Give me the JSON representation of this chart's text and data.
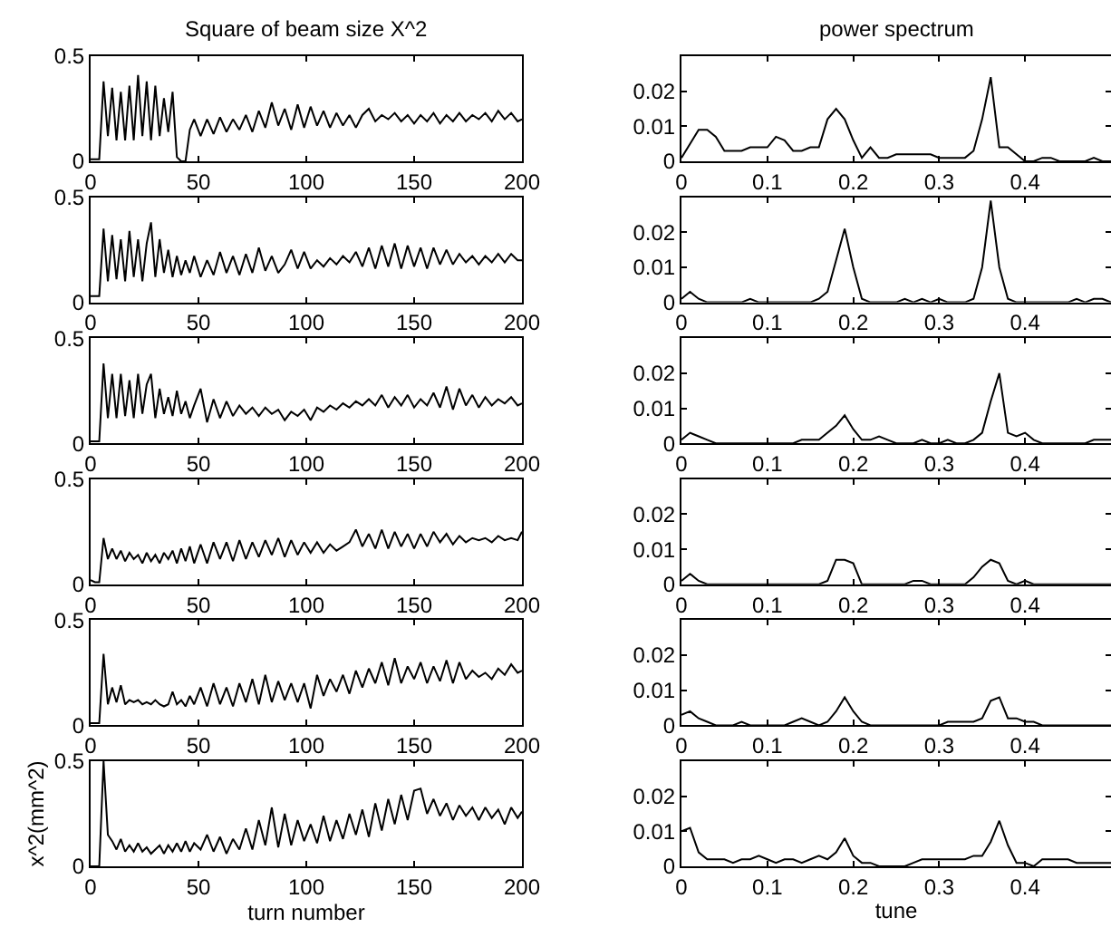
{
  "chart_data": [
    {
      "type": "line",
      "title": "Square of beam size X^2",
      "color": "#000000",
      "xlim": [
        0,
        200
      ],
      "ylim": [
        0,
        0.5
      ],
      "xticks": [
        0,
        50,
        100,
        150,
        200
      ],
      "yticks": [
        0,
        0.5
      ],
      "x": [
        0,
        2,
        4,
        6,
        8,
        10,
        12,
        14,
        16,
        18,
        20,
        22,
        24,
        26,
        28,
        30,
        32,
        34,
        36,
        38,
        40,
        42,
        44,
        46,
        48,
        51,
        54,
        57,
        60,
        63,
        66,
        69,
        72,
        75,
        78,
        81,
        84,
        87,
        90,
        93,
        96,
        99,
        102,
        105,
        108,
        111,
        114,
        117,
        120,
        123,
        126,
        129,
        132,
        135,
        138,
        141,
        144,
        147,
        150,
        153,
        156,
        159,
        162,
        165,
        168,
        171,
        174,
        177,
        180,
        183,
        186,
        189,
        192,
        195,
        198,
        200
      ],
      "values": [
        0.01,
        0.01,
        0.01,
        0.38,
        0.12,
        0.35,
        0.1,
        0.33,
        0.1,
        0.36,
        0.1,
        0.41,
        0.12,
        0.38,
        0.1,
        0.36,
        0.12,
        0.3,
        0.14,
        0.33,
        0.02,
        0.0,
        0.0,
        0.15,
        0.2,
        0.12,
        0.2,
        0.13,
        0.21,
        0.14,
        0.2,
        0.15,
        0.22,
        0.14,
        0.24,
        0.16,
        0.28,
        0.17,
        0.25,
        0.15,
        0.27,
        0.16,
        0.26,
        0.17,
        0.24,
        0.16,
        0.23,
        0.17,
        0.22,
        0.16,
        0.22,
        0.25,
        0.19,
        0.22,
        0.2,
        0.23,
        0.19,
        0.22,
        0.18,
        0.22,
        0.19,
        0.23,
        0.18,
        0.22,
        0.19,
        0.23,
        0.19,
        0.22,
        0.2,
        0.23,
        0.19,
        0.24,
        0.2,
        0.23,
        0.19,
        0.2
      ]
    },
    {
      "type": "line",
      "title": "power spectrum",
      "color": "#000000",
      "xlim": [
        0,
        0.5
      ],
      "ylim": [
        0,
        0.03
      ],
      "xticks": [
        0,
        0.1,
        0.2,
        0.3,
        0.4
      ],
      "yticks": [
        0,
        0.01,
        0.02
      ],
      "x": [
        0,
        0.01,
        0.02,
        0.03,
        0.04,
        0.05,
        0.06,
        0.07,
        0.08,
        0.09,
        0.1,
        0.11,
        0.12,
        0.13,
        0.14,
        0.15,
        0.16,
        0.17,
        0.18,
        0.19,
        0.2,
        0.21,
        0.22,
        0.23,
        0.24,
        0.25,
        0.26,
        0.27,
        0.28,
        0.29,
        0.3,
        0.31,
        0.32,
        0.33,
        0.34,
        0.35,
        0.36,
        0.37,
        0.38,
        0.39,
        0.4,
        0.41,
        0.42,
        0.43,
        0.44,
        0.45,
        0.46,
        0.47,
        0.48,
        0.49,
        0.5
      ],
      "values": [
        0.001,
        0.005,
        0.009,
        0.009,
        0.007,
        0.003,
        0.003,
        0.003,
        0.004,
        0.004,
        0.004,
        0.007,
        0.006,
        0.003,
        0.003,
        0.004,
        0.004,
        0.012,
        0.015,
        0.012,
        0.006,
        0.001,
        0.004,
        0.001,
        0.001,
        0.002,
        0.002,
        0.002,
        0.002,
        0.002,
        0.001,
        0.001,
        0.001,
        0.001,
        0.003,
        0.012,
        0.024,
        0.004,
        0.004,
        0.002,
        0.0,
        0.0,
        0.001,
        0.001,
        0.0,
        0.0,
        0.0,
        0.0,
        0.001,
        0.0,
        0.0
      ]
    },
    {
      "type": "line",
      "color": "#000000",
      "xlim": [
        0,
        200
      ],
      "ylim": [
        0,
        0.5
      ],
      "xticks": [
        0,
        50,
        100,
        150,
        200
      ],
      "yticks": [
        0,
        0.5
      ],
      "x": [
        0,
        2,
        4,
        6,
        8,
        10,
        12,
        14,
        16,
        18,
        20,
        22,
        24,
        26,
        28,
        30,
        32,
        34,
        36,
        38,
        40,
        42,
        44,
        46,
        48,
        51,
        54,
        57,
        60,
        63,
        66,
        69,
        72,
        75,
        78,
        81,
        84,
        87,
        90,
        93,
        96,
        99,
        102,
        105,
        108,
        111,
        114,
        117,
        120,
        123,
        126,
        129,
        132,
        135,
        138,
        141,
        144,
        147,
        150,
        153,
        156,
        159,
        162,
        165,
        168,
        171,
        174,
        177,
        180,
        183,
        186,
        189,
        192,
        195,
        198,
        200
      ],
      "values": [
        0.03,
        0.03,
        0.03,
        0.35,
        0.1,
        0.32,
        0.11,
        0.3,
        0.1,
        0.34,
        0.12,
        0.3,
        0.1,
        0.28,
        0.38,
        0.12,
        0.3,
        0.14,
        0.25,
        0.12,
        0.22,
        0.13,
        0.2,
        0.14,
        0.22,
        0.12,
        0.2,
        0.13,
        0.24,
        0.14,
        0.22,
        0.13,
        0.23,
        0.14,
        0.26,
        0.15,
        0.22,
        0.14,
        0.18,
        0.25,
        0.16,
        0.24,
        0.16,
        0.2,
        0.17,
        0.21,
        0.18,
        0.22,
        0.19,
        0.24,
        0.17,
        0.26,
        0.16,
        0.27,
        0.17,
        0.28,
        0.16,
        0.27,
        0.17,
        0.26,
        0.16,
        0.26,
        0.18,
        0.25,
        0.18,
        0.23,
        0.19,
        0.22,
        0.18,
        0.22,
        0.19,
        0.23,
        0.19,
        0.23,
        0.2,
        0.2
      ]
    },
    {
      "type": "line",
      "color": "#000000",
      "xlim": [
        0,
        0.5
      ],
      "ylim": [
        0,
        0.03
      ],
      "xticks": [
        0,
        0.1,
        0.2,
        0.3,
        0.4
      ],
      "yticks": [
        0,
        0.01,
        0.02
      ],
      "x": [
        0,
        0.01,
        0.02,
        0.03,
        0.04,
        0.05,
        0.06,
        0.07,
        0.08,
        0.09,
        0.1,
        0.11,
        0.12,
        0.13,
        0.14,
        0.15,
        0.16,
        0.17,
        0.18,
        0.19,
        0.2,
        0.21,
        0.22,
        0.23,
        0.24,
        0.25,
        0.26,
        0.27,
        0.28,
        0.29,
        0.3,
        0.31,
        0.32,
        0.33,
        0.34,
        0.35,
        0.36,
        0.37,
        0.38,
        0.39,
        0.4,
        0.41,
        0.42,
        0.43,
        0.44,
        0.45,
        0.46,
        0.47,
        0.48,
        0.49,
        0.5
      ],
      "values": [
        0.001,
        0.003,
        0.001,
        0.0,
        0.0,
        0.0,
        0.0,
        0.0,
        0.001,
        0.0,
        0.0,
        0.0,
        0.0,
        0.0,
        0.0,
        0.0,
        0.001,
        0.003,
        0.012,
        0.021,
        0.01,
        0.001,
        0.0,
        0.0,
        0.0,
        0.0,
        0.001,
        0.0,
        0.001,
        0.0,
        0.001,
        0.0,
        0.0,
        0.0,
        0.001,
        0.01,
        0.029,
        0.01,
        0.001,
        0.0,
        0.0,
        0.0,
        0.0,
        0.0,
        0.0,
        0.0,
        0.001,
        0.0,
        0.001,
        0.001,
        0.0
      ]
    },
    {
      "type": "line",
      "color": "#000000",
      "xlim": [
        0,
        200
      ],
      "ylim": [
        0,
        0.5
      ],
      "xticks": [
        0,
        50,
        100,
        150,
        200
      ],
      "yticks": [
        0,
        0.5
      ],
      "x": [
        0,
        2,
        4,
        6,
        8,
        10,
        12,
        14,
        16,
        18,
        20,
        22,
        24,
        26,
        28,
        30,
        32,
        34,
        36,
        38,
        40,
        42,
        44,
        46,
        48,
        51,
        54,
        57,
        60,
        63,
        66,
        69,
        72,
        75,
        78,
        81,
        84,
        87,
        90,
        93,
        96,
        99,
        102,
        105,
        108,
        111,
        114,
        117,
        120,
        123,
        126,
        129,
        132,
        135,
        138,
        141,
        144,
        147,
        150,
        153,
        156,
        159,
        162,
        165,
        168,
        171,
        174,
        177,
        180,
        183,
        186,
        189,
        192,
        195,
        198,
        200
      ],
      "values": [
        0.01,
        0.01,
        0.01,
        0.38,
        0.12,
        0.33,
        0.12,
        0.33,
        0.13,
        0.3,
        0.12,
        0.33,
        0.14,
        0.28,
        0.33,
        0.12,
        0.26,
        0.14,
        0.22,
        0.13,
        0.25,
        0.14,
        0.2,
        0.12,
        0.18,
        0.26,
        0.1,
        0.21,
        0.12,
        0.2,
        0.13,
        0.18,
        0.14,
        0.17,
        0.13,
        0.17,
        0.14,
        0.16,
        0.11,
        0.15,
        0.13,
        0.16,
        0.11,
        0.17,
        0.15,
        0.18,
        0.16,
        0.19,
        0.17,
        0.2,
        0.18,
        0.21,
        0.18,
        0.23,
        0.17,
        0.22,
        0.18,
        0.23,
        0.17,
        0.21,
        0.18,
        0.24,
        0.17,
        0.27,
        0.16,
        0.26,
        0.18,
        0.23,
        0.17,
        0.22,
        0.18,
        0.21,
        0.19,
        0.22,
        0.18,
        0.19
      ]
    },
    {
      "type": "line",
      "color": "#000000",
      "xlim": [
        0,
        0.5
      ],
      "ylim": [
        0,
        0.03
      ],
      "xticks": [
        0,
        0.1,
        0.2,
        0.3,
        0.4
      ],
      "yticks": [
        0,
        0.01,
        0.02
      ],
      "x": [
        0,
        0.01,
        0.02,
        0.03,
        0.04,
        0.05,
        0.06,
        0.07,
        0.08,
        0.09,
        0.1,
        0.11,
        0.12,
        0.13,
        0.14,
        0.15,
        0.16,
        0.17,
        0.18,
        0.19,
        0.2,
        0.21,
        0.22,
        0.23,
        0.24,
        0.25,
        0.26,
        0.27,
        0.28,
        0.29,
        0.3,
        0.31,
        0.32,
        0.33,
        0.34,
        0.35,
        0.36,
        0.37,
        0.38,
        0.39,
        0.4,
        0.41,
        0.42,
        0.43,
        0.44,
        0.45,
        0.46,
        0.47,
        0.48,
        0.49,
        0.5
      ],
      "values": [
        0.001,
        0.003,
        0.002,
        0.001,
        0.0,
        0.0,
        0.0,
        0.0,
        0.0,
        0.0,
        0.0,
        0.0,
        0.0,
        0.0,
        0.001,
        0.001,
        0.001,
        0.003,
        0.005,
        0.008,
        0.004,
        0.001,
        0.001,
        0.002,
        0.001,
        0.0,
        0.0,
        0.0,
        0.001,
        0.0,
        0.0,
        0.001,
        0.0,
        0.0,
        0.001,
        0.003,
        0.012,
        0.02,
        0.003,
        0.002,
        0.003,
        0.001,
        0.0,
        0.0,
        0.0,
        0.0,
        0.0,
        0.0,
        0.001,
        0.001,
        0.001
      ]
    },
    {
      "type": "line",
      "color": "#000000",
      "xlim": [
        0,
        200
      ],
      "ylim": [
        0,
        0.5
      ],
      "xticks": [
        0,
        50,
        100,
        150,
        200
      ],
      "yticks": [
        0,
        0.5
      ],
      "x": [
        0,
        2,
        4,
        6,
        8,
        10,
        12,
        14,
        16,
        18,
        20,
        22,
        24,
        26,
        28,
        30,
        32,
        34,
        36,
        38,
        40,
        42,
        44,
        46,
        48,
        51,
        54,
        57,
        60,
        63,
        66,
        69,
        72,
        75,
        78,
        81,
        84,
        87,
        90,
        93,
        96,
        99,
        102,
        105,
        108,
        111,
        114,
        117,
        120,
        123,
        126,
        129,
        132,
        135,
        138,
        141,
        144,
        147,
        150,
        153,
        156,
        159,
        162,
        165,
        168,
        171,
        174,
        177,
        180,
        183,
        186,
        189,
        192,
        195,
        198,
        200
      ],
      "values": [
        0.02,
        0.01,
        0.01,
        0.22,
        0.12,
        0.17,
        0.12,
        0.16,
        0.11,
        0.15,
        0.12,
        0.14,
        0.1,
        0.15,
        0.11,
        0.14,
        0.1,
        0.15,
        0.12,
        0.16,
        0.1,
        0.17,
        0.11,
        0.18,
        0.1,
        0.19,
        0.1,
        0.2,
        0.12,
        0.2,
        0.11,
        0.21,
        0.12,
        0.2,
        0.13,
        0.21,
        0.14,
        0.22,
        0.13,
        0.21,
        0.14,
        0.2,
        0.15,
        0.2,
        0.15,
        0.19,
        0.16,
        0.18,
        0.2,
        0.26,
        0.18,
        0.24,
        0.17,
        0.26,
        0.17,
        0.25,
        0.18,
        0.24,
        0.17,
        0.24,
        0.18,
        0.25,
        0.2,
        0.24,
        0.19,
        0.23,
        0.2,
        0.22,
        0.21,
        0.22,
        0.2,
        0.23,
        0.21,
        0.22,
        0.21,
        0.25
      ]
    },
    {
      "type": "line",
      "color": "#000000",
      "xlim": [
        0,
        0.5
      ],
      "ylim": [
        0,
        0.03
      ],
      "xticks": [
        0,
        0.1,
        0.2,
        0.3,
        0.4
      ],
      "yticks": [
        0,
        0.01,
        0.02
      ],
      "x": [
        0,
        0.01,
        0.02,
        0.03,
        0.04,
        0.05,
        0.06,
        0.07,
        0.08,
        0.09,
        0.1,
        0.11,
        0.12,
        0.13,
        0.14,
        0.15,
        0.16,
        0.17,
        0.18,
        0.19,
        0.2,
        0.21,
        0.22,
        0.23,
        0.24,
        0.25,
        0.26,
        0.27,
        0.28,
        0.29,
        0.3,
        0.31,
        0.32,
        0.33,
        0.34,
        0.35,
        0.36,
        0.37,
        0.38,
        0.39,
        0.4,
        0.41,
        0.42,
        0.43,
        0.44,
        0.45,
        0.46,
        0.47,
        0.48,
        0.49,
        0.5
      ],
      "values": [
        0.001,
        0.003,
        0.001,
        0.0,
        0.0,
        0.0,
        0.0,
        0.0,
        0.0,
        0.0,
        0.0,
        0.0,
        0.0,
        0.0,
        0.0,
        0.0,
        0.0,
        0.001,
        0.007,
        0.007,
        0.006,
        0.0,
        0.0,
        0.0,
        0.0,
        0.0,
        0.0,
        0.001,
        0.001,
        0.0,
        0.0,
        0.0,
        0.0,
        0.0,
        0.002,
        0.005,
        0.007,
        0.006,
        0.001,
        0.0,
        0.001,
        0.0,
        0.0,
        0.0,
        0.0,
        0.0,
        0.0,
        0.0,
        0.0,
        0.0,
        0.0
      ]
    },
    {
      "type": "line",
      "color": "#000000",
      "xlim": [
        0,
        200
      ],
      "ylim": [
        0,
        0.5
      ],
      "xticks": [
        0,
        50,
        100,
        150,
        200
      ],
      "yticks": [
        0,
        0.5
      ],
      "x": [
        0,
        2,
        4,
        6,
        8,
        10,
        12,
        14,
        16,
        18,
        20,
        22,
        24,
        26,
        28,
        30,
        32,
        34,
        36,
        38,
        40,
        42,
        44,
        46,
        48,
        51,
        54,
        57,
        60,
        63,
        66,
        69,
        72,
        75,
        78,
        81,
        84,
        87,
        90,
        93,
        96,
        99,
        102,
        105,
        108,
        111,
        114,
        117,
        120,
        123,
        126,
        129,
        132,
        135,
        138,
        141,
        144,
        147,
        150,
        153,
        156,
        159,
        162,
        165,
        168,
        171,
        174,
        177,
        180,
        183,
        186,
        189,
        192,
        195,
        198,
        200
      ],
      "values": [
        0.01,
        0.01,
        0.01,
        0.34,
        0.1,
        0.18,
        0.11,
        0.19,
        0.1,
        0.12,
        0.11,
        0.12,
        0.1,
        0.11,
        0.1,
        0.12,
        0.1,
        0.09,
        0.1,
        0.16,
        0.1,
        0.12,
        0.09,
        0.14,
        0.1,
        0.18,
        0.09,
        0.2,
        0.1,
        0.18,
        0.09,
        0.2,
        0.11,
        0.22,
        0.1,
        0.24,
        0.11,
        0.21,
        0.12,
        0.2,
        0.11,
        0.2,
        0.08,
        0.24,
        0.14,
        0.22,
        0.16,
        0.24,
        0.15,
        0.26,
        0.18,
        0.27,
        0.2,
        0.3,
        0.19,
        0.32,
        0.2,
        0.28,
        0.22,
        0.3,
        0.2,
        0.28,
        0.21,
        0.31,
        0.2,
        0.3,
        0.22,
        0.26,
        0.23,
        0.25,
        0.22,
        0.27,
        0.24,
        0.29,
        0.25,
        0.26
      ]
    },
    {
      "type": "line",
      "color": "#000000",
      "xlim": [
        0,
        0.5
      ],
      "ylim": [
        0,
        0.03
      ],
      "xticks": [
        0,
        0.1,
        0.2,
        0.3,
        0.4
      ],
      "yticks": [
        0,
        0.01,
        0.02
      ],
      "x": [
        0,
        0.01,
        0.02,
        0.03,
        0.04,
        0.05,
        0.06,
        0.07,
        0.08,
        0.09,
        0.1,
        0.11,
        0.12,
        0.13,
        0.14,
        0.15,
        0.16,
        0.17,
        0.18,
        0.19,
        0.2,
        0.21,
        0.22,
        0.23,
        0.24,
        0.25,
        0.26,
        0.27,
        0.28,
        0.29,
        0.3,
        0.31,
        0.32,
        0.33,
        0.34,
        0.35,
        0.36,
        0.37,
        0.38,
        0.39,
        0.4,
        0.41,
        0.42,
        0.43,
        0.44,
        0.45,
        0.46,
        0.47,
        0.48,
        0.49,
        0.5
      ],
      "values": [
        0.003,
        0.004,
        0.002,
        0.001,
        0.0,
        0.0,
        0.0,
        0.001,
        0.0,
        0.0,
        0.0,
        0.0,
        0.0,
        0.001,
        0.002,
        0.001,
        0.0,
        0.001,
        0.004,
        0.008,
        0.004,
        0.001,
        0.0,
        0.0,
        0.0,
        0.0,
        0.0,
        0.0,
        0.0,
        0.0,
        0.0,
        0.001,
        0.001,
        0.001,
        0.001,
        0.002,
        0.007,
        0.008,
        0.002,
        0.002,
        0.001,
        0.001,
        0.0,
        0.0,
        0.0,
        0.0,
        0.0,
        0.0,
        0.0,
        0.0,
        0.0
      ]
    },
    {
      "type": "line",
      "color": "#000000",
      "xlim": [
        0,
        200
      ],
      "ylim": [
        0,
        0.5
      ],
      "xticks": [
        0,
        50,
        100,
        150,
        200
      ],
      "yticks": [
        0,
        0.5
      ],
      "xlabel": "turn number",
      "ylabel": "x^2(mm^2)",
      "x": [
        0,
        2,
        4,
        6,
        8,
        10,
        12,
        14,
        16,
        18,
        20,
        22,
        24,
        26,
        28,
        30,
        32,
        34,
        36,
        38,
        40,
        42,
        44,
        46,
        48,
        51,
        54,
        57,
        60,
        63,
        66,
        69,
        72,
        75,
        78,
        81,
        84,
        87,
        90,
        93,
        96,
        99,
        102,
        105,
        108,
        111,
        114,
        117,
        120,
        123,
        126,
        129,
        132,
        135,
        138,
        141,
        144,
        147,
        150,
        153,
        156,
        159,
        162,
        165,
        168,
        171,
        174,
        177,
        180,
        183,
        186,
        189,
        192,
        195,
        198,
        200
      ],
      "values": [
        0.0,
        0.0,
        0.0,
        0.5,
        0.15,
        0.12,
        0.08,
        0.13,
        0.07,
        0.1,
        0.07,
        0.11,
        0.07,
        0.09,
        0.06,
        0.08,
        0.1,
        0.06,
        0.1,
        0.07,
        0.11,
        0.07,
        0.12,
        0.07,
        0.11,
        0.08,
        0.15,
        0.07,
        0.14,
        0.06,
        0.13,
        0.08,
        0.18,
        0.08,
        0.22,
        0.1,
        0.28,
        0.09,
        0.25,
        0.1,
        0.22,
        0.12,
        0.2,
        0.11,
        0.24,
        0.12,
        0.22,
        0.13,
        0.25,
        0.15,
        0.27,
        0.14,
        0.3,
        0.17,
        0.32,
        0.2,
        0.34,
        0.22,
        0.36,
        0.37,
        0.25,
        0.32,
        0.24,
        0.3,
        0.22,
        0.29,
        0.24,
        0.28,
        0.22,
        0.28,
        0.23,
        0.27,
        0.2,
        0.28,
        0.23,
        0.26
      ]
    },
    {
      "type": "line",
      "color": "#000000",
      "xlim": [
        0,
        0.5
      ],
      "ylim": [
        0,
        0.03
      ],
      "xticks": [
        0,
        0.1,
        0.2,
        0.3,
        0.4
      ],
      "yticks": [
        0,
        0.01,
        0.02
      ],
      "xlabel": "tune",
      "x": [
        0,
        0.01,
        0.02,
        0.03,
        0.04,
        0.05,
        0.06,
        0.07,
        0.08,
        0.09,
        0.1,
        0.11,
        0.12,
        0.13,
        0.14,
        0.15,
        0.16,
        0.17,
        0.18,
        0.19,
        0.2,
        0.21,
        0.22,
        0.23,
        0.24,
        0.25,
        0.26,
        0.27,
        0.28,
        0.29,
        0.3,
        0.31,
        0.32,
        0.33,
        0.34,
        0.35,
        0.36,
        0.37,
        0.38,
        0.39,
        0.4,
        0.41,
        0.42,
        0.43,
        0.44,
        0.45,
        0.46,
        0.47,
        0.48,
        0.49,
        0.5
      ],
      "values": [
        0.01,
        0.011,
        0.004,
        0.002,
        0.002,
        0.002,
        0.001,
        0.002,
        0.002,
        0.003,
        0.002,
        0.001,
        0.002,
        0.002,
        0.001,
        0.002,
        0.003,
        0.002,
        0.004,
        0.008,
        0.003,
        0.001,
        0.001,
        0.0,
        0.0,
        0.0,
        0.0,
        0.001,
        0.002,
        0.002,
        0.002,
        0.002,
        0.002,
        0.002,
        0.003,
        0.003,
        0.007,
        0.013,
        0.006,
        0.001,
        0.001,
        0.0,
        0.002,
        0.002,
        0.002,
        0.002,
        0.001,
        0.001,
        0.001,
        0.001,
        0.001
      ]
    }
  ]
}
